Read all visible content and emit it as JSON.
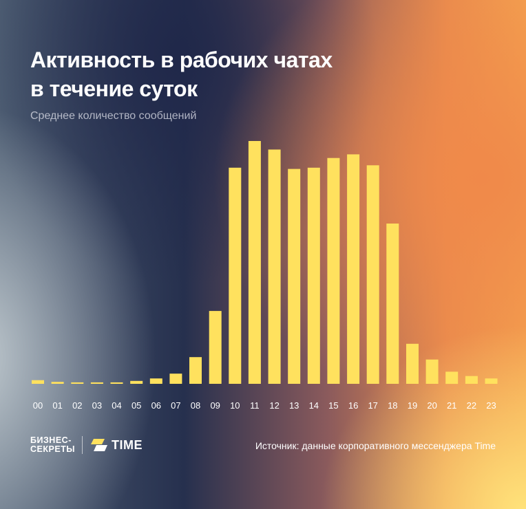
{
  "header": {
    "title_line1": "Активность в рабочих чатах",
    "title_line2": "в течение суток",
    "subtitle": "Среднее количество сообщений"
  },
  "footer": {
    "brand_line1": "БИЗНЕС-",
    "brand_line2": "СЕКРЕТЫ",
    "partner": "TIME",
    "source": "Источник: данные корпоративного мессенджера Time"
  },
  "colors": {
    "bar": "#ffe15e",
    "tick_label": "#ffffff"
  },
  "chart_data": {
    "type": "bar",
    "title": "Активность в рабочих чатах в течение суток",
    "subtitle": "Среднее количество сообщений",
    "xlabel": "",
    "ylabel": "",
    "categories": [
      "00",
      "01",
      "02",
      "03",
      "04",
      "05",
      "06",
      "07",
      "08",
      "09",
      "10",
      "11",
      "12",
      "13",
      "14",
      "15",
      "16",
      "17",
      "18",
      "19",
      "20",
      "21",
      "22",
      "23"
    ],
    "values": [
      1.5,
      0.8,
      0.6,
      0.6,
      0.6,
      1.2,
      2.2,
      4.2,
      11,
      30,
      89,
      100,
      96.5,
      88.5,
      89,
      93,
      94.5,
      90,
      66,
      16.5,
      10,
      5,
      3.2,
      2.2
    ],
    "ylim": [
      0,
      100
    ],
    "grid": false,
    "legend": "none"
  }
}
